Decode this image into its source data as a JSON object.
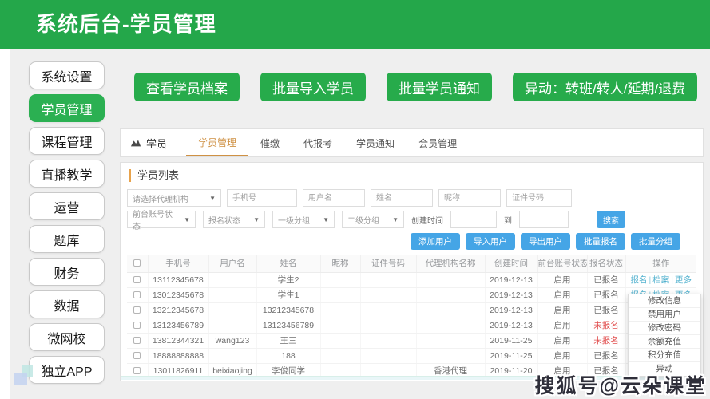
{
  "header": {
    "title": "系统后台-学员管理"
  },
  "sidebar": {
    "items": [
      {
        "label": "系统设置",
        "active": false
      },
      {
        "label": "学员管理",
        "active": true
      },
      {
        "label": "课程管理",
        "active": false
      },
      {
        "label": "直播教学",
        "active": false
      },
      {
        "label": "运营",
        "active": false
      },
      {
        "label": "题库",
        "active": false
      },
      {
        "label": "财务",
        "active": false
      },
      {
        "label": "数据",
        "active": false
      },
      {
        "label": "微网校",
        "active": false
      },
      {
        "label": "独立APP",
        "active": false
      }
    ]
  },
  "quick_buttons": [
    {
      "label": "查看学员档案"
    },
    {
      "label": "批量导入学员"
    },
    {
      "label": "批量学员通知"
    },
    {
      "label": "异动：转班/转人/延期/退费"
    }
  ],
  "panel": {
    "module": {
      "icon": "students-icon",
      "label": "学员"
    },
    "tabs": [
      {
        "label": "学员管理",
        "active": true
      },
      {
        "label": "催缴",
        "active": false
      },
      {
        "label": "代报考",
        "active": false
      },
      {
        "label": "学员通知",
        "active": false
      },
      {
        "label": "会员管理",
        "active": false
      }
    ],
    "section_title": "学员列表",
    "filters": {
      "agency_select": "请选择代理机构",
      "inputs": [
        "手机号",
        "用户名",
        "姓名",
        "昵称",
        "证件号码"
      ],
      "selects_row2": [
        "前台账号状态",
        "报名状态",
        "一级分组",
        "二级分组"
      ],
      "created_label": "创建时间",
      "to_label": "到",
      "search_label": "搜索"
    },
    "actions": [
      "添加用户",
      "导入用户",
      "导出用户",
      "批量报名",
      "批量分组"
    ],
    "table": {
      "columns": [
        "手机号",
        "用户名",
        "姓名",
        "昵称",
        "证件号码",
        "代理机构名称",
        "创建时间",
        "前台账号状态",
        "报名状态",
        "操作"
      ],
      "ops_links": [
        "报名",
        "档案",
        "更多"
      ],
      "rows": [
        {
          "phone": "13112345678",
          "username": "",
          "name": "学生2",
          "nickname": "",
          "id_no": "",
          "agency": "",
          "created": "2019-12-13",
          "account_status": "启用",
          "reg_status": "已报名",
          "reg_red": false
        },
        {
          "phone": "13012345678",
          "username": "",
          "name": "学生1",
          "nickname": "",
          "id_no": "",
          "agency": "",
          "created": "2019-12-13",
          "account_status": "启用",
          "reg_status": "已报名",
          "reg_red": false
        },
        {
          "phone": "13212345678",
          "username": "",
          "name": "13212345678",
          "nickname": "",
          "id_no": "",
          "agency": "",
          "created": "2019-12-13",
          "account_status": "启用",
          "reg_status": "已报名",
          "reg_red": false
        },
        {
          "phone": "13123456789",
          "username": "",
          "name": "13123456789",
          "nickname": "",
          "id_no": "",
          "agency": "",
          "created": "2019-12-13",
          "account_status": "启用",
          "reg_status": "未报名",
          "reg_red": true
        },
        {
          "phone": "13812344321",
          "username": "wang123",
          "name": "王三",
          "nickname": "",
          "id_no": "",
          "agency": "",
          "created": "2019-11-25",
          "account_status": "启用",
          "reg_status": "未报名",
          "reg_red": true
        },
        {
          "phone": "18888888888",
          "username": "",
          "name": "188",
          "nickname": "",
          "id_no": "",
          "agency": "",
          "created": "2019-11-25",
          "account_status": "启用",
          "reg_status": "已报名",
          "reg_red": false
        },
        {
          "phone": "13011826911",
          "username": "beixiaojing",
          "name": "李俊同学",
          "nickname": "",
          "id_no": "",
          "agency": "香港代理",
          "created": "2019-11-20",
          "account_status": "启用",
          "reg_status": "已报名",
          "reg_red": false
        }
      ]
    },
    "more_menu": [
      "修改信息",
      "禁用用户",
      "修改密码",
      "余额充值",
      "积分充值",
      "异动"
    ]
  },
  "watermark": "搜狐号@云朵课堂",
  "colors": {
    "green": "#24a74a",
    "green_active": "#2bb052",
    "blue": "#45a5e6",
    "tab_orange": "#cf9144",
    "section_orange": "#e8a34c",
    "link_teal": "#53b2cf",
    "status_red": "#e25252"
  }
}
